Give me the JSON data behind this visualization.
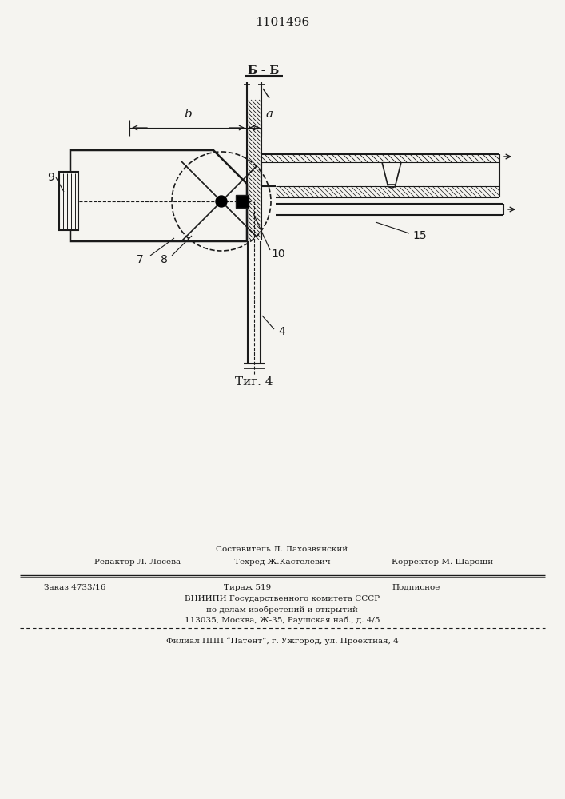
{
  "title": "1101496",
  "fig_label": "Τиг. 4",
  "section_label": "Б - Б",
  "background_color": "#f5f4f0",
  "line_color": "#1a1a1a",
  "footer_sestavitel": "Составитель Л. Лахозвянский",
  "footer_redaktor": "Редактор Л. Лосева",
  "footer_tehred": "Техред Ж.Кастелевич",
  "footer_korrektor": "Корректор М. Шароши",
  "footer_zakaz": "Заказ 4733/16",
  "footer_tirazh": "Тираж 519",
  "footer_podpisnoe": "Подписное",
  "footer_vniip1": "ВНИИПИ Государственного комитета СССР",
  "footer_vniip2": "по делам изобретений и открытий",
  "footer_addr": "113035, Москва, Ж-35, Раушская наб., д. 4/5",
  "footer_filial": "Филиал ППП “Патент”, г. Ужгород, ул. Проектная, 4"
}
